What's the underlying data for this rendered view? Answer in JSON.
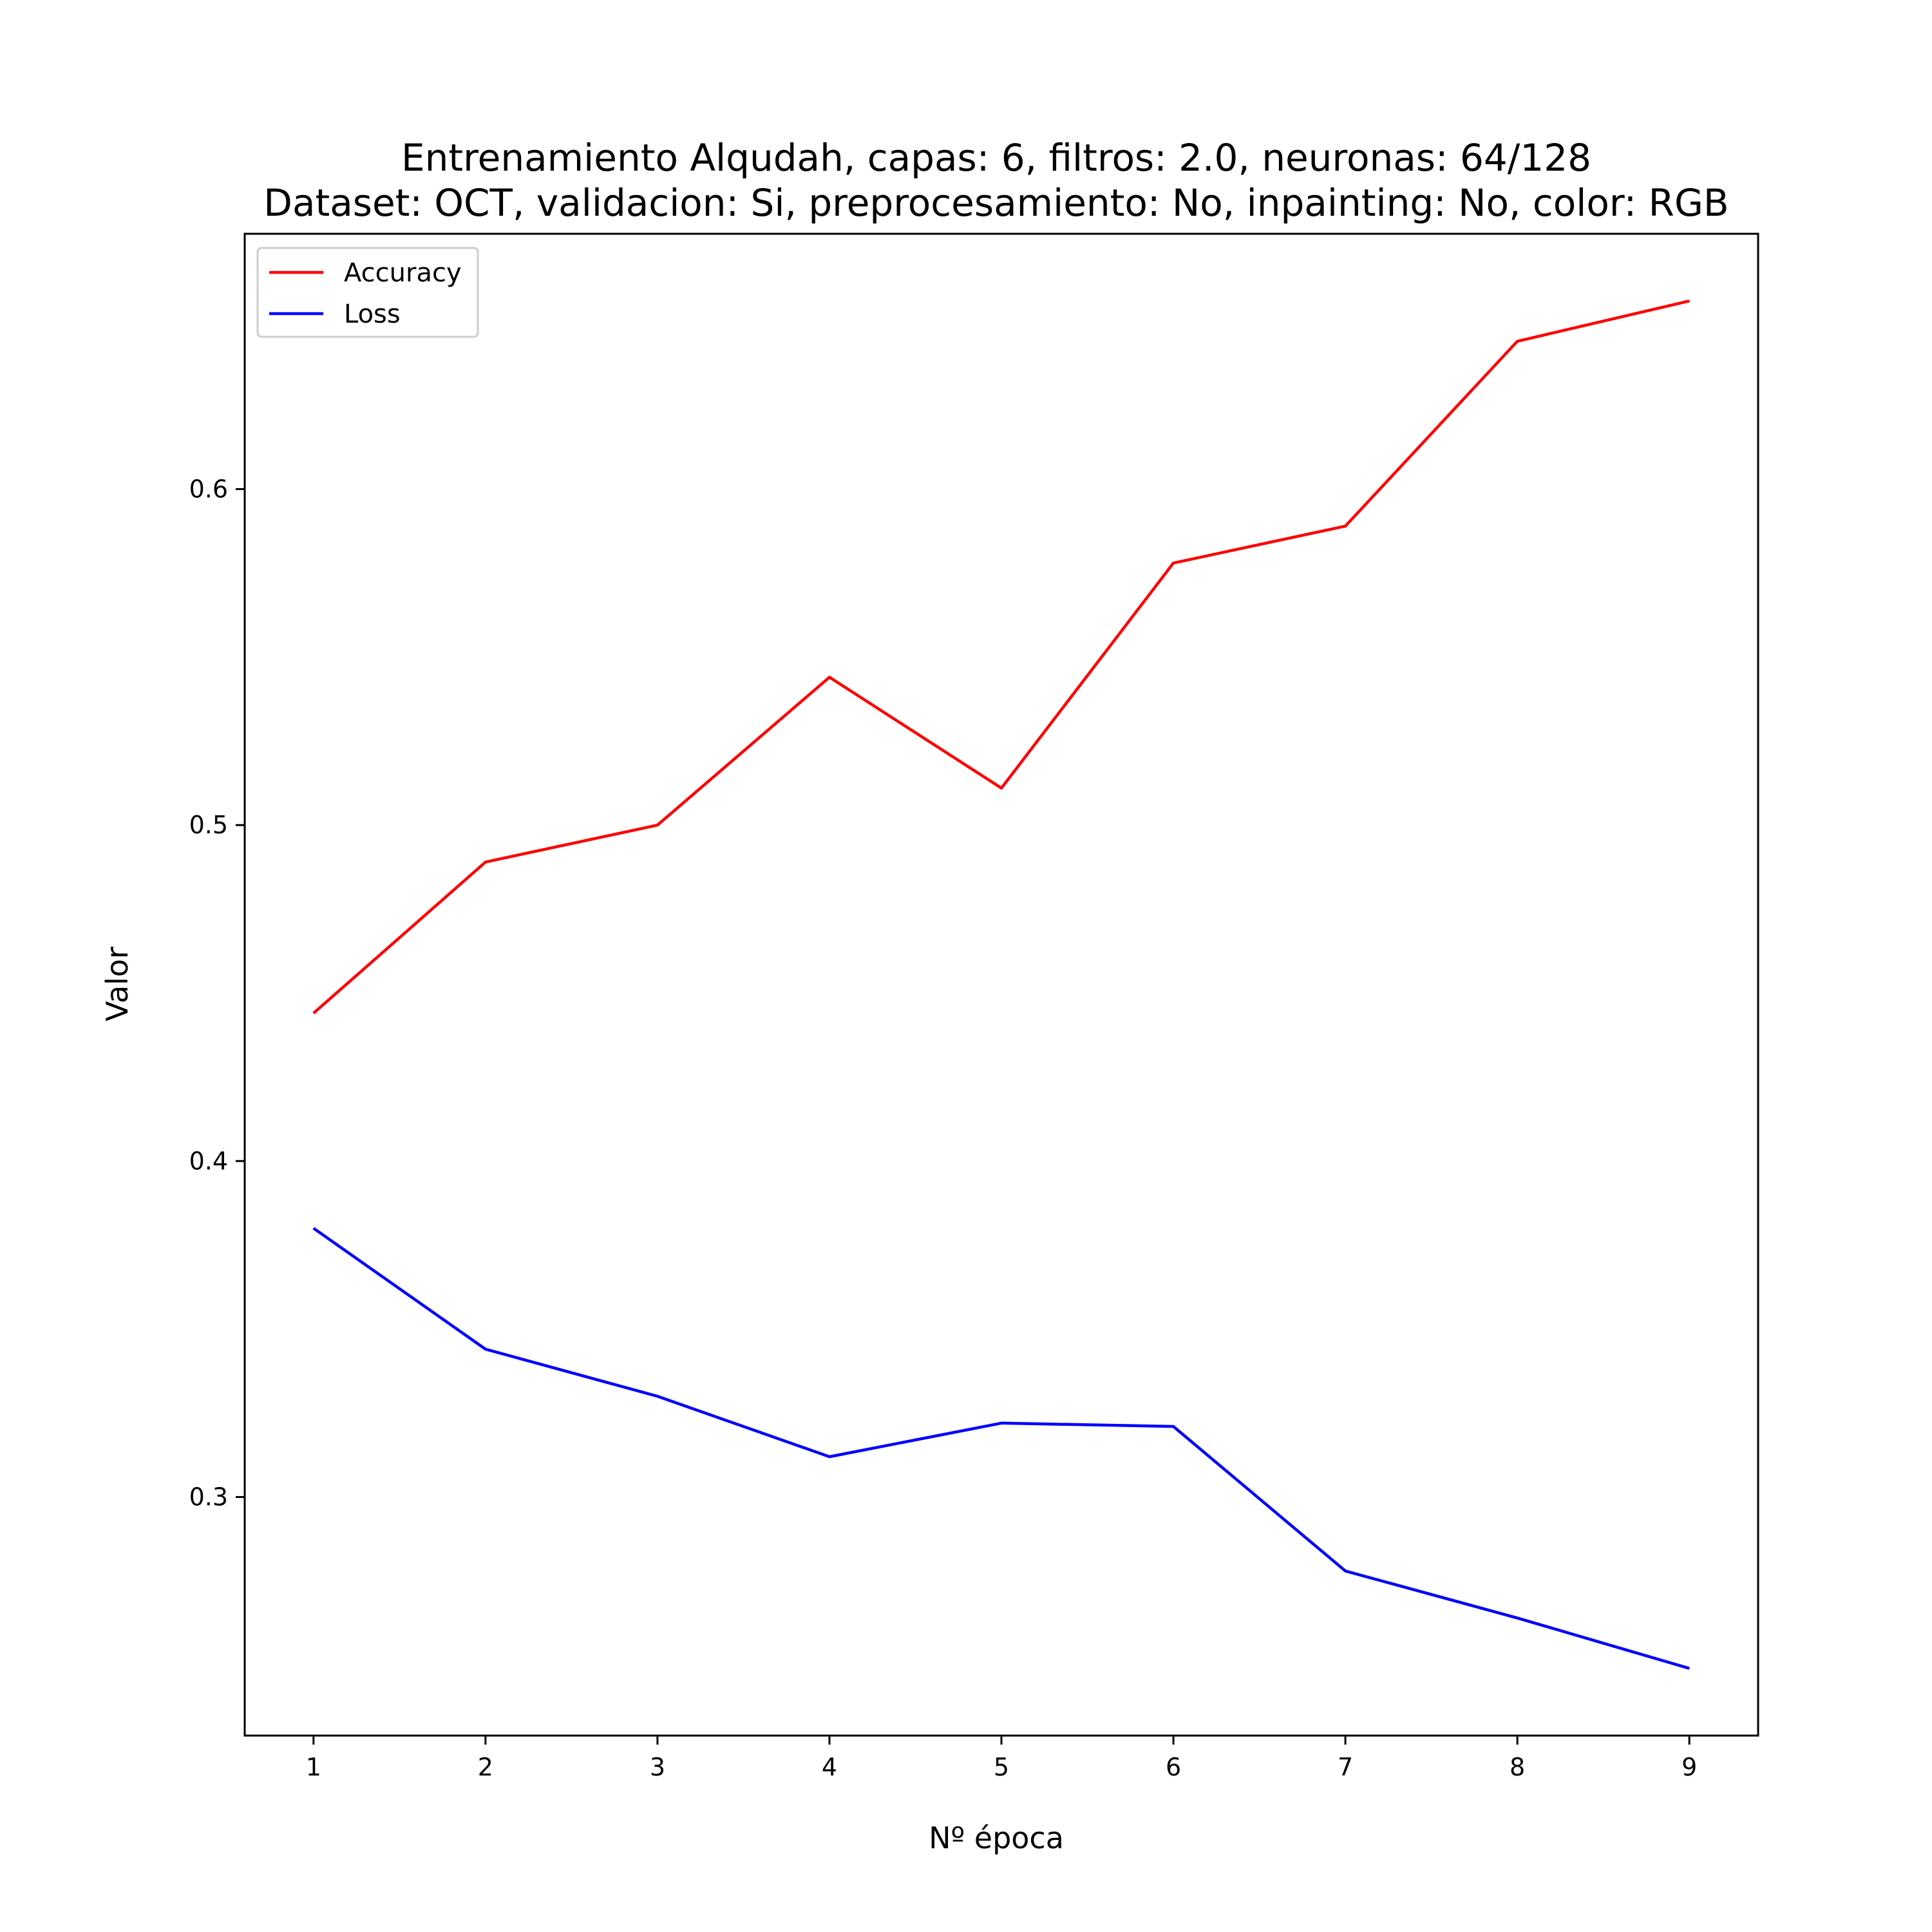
{
  "chart_data": {
    "type": "line",
    "title": "Entrenamiento Alqudah, capas: 6, filtros: 2.0, neuronas: 64/128",
    "subtitle": "Dataset: OCT, validacion: Si, preprocesamiento: No, inpainting: No, color: RGB",
    "xlabel": "Nº época",
    "ylabel": "Valor",
    "x": [
      1,
      2,
      3,
      4,
      5,
      6,
      7,
      8,
      9
    ],
    "x_ticks": [
      "1",
      "2",
      "3",
      "4",
      "5",
      "6",
      "7",
      "8",
      "9"
    ],
    "y_ticks": [
      "0.3",
      "0.4",
      "0.5",
      "0.6"
    ],
    "y_tick_values": [
      0.3,
      0.4,
      0.5,
      0.6
    ],
    "xlim": [
      0.6,
      9.4
    ],
    "ylim": [
      0.229,
      0.676
    ],
    "grid": false,
    "legend_position": "top-left",
    "series": [
      {
        "name": "Accuracy",
        "color": "#ff0000",
        "values": [
          0.444,
          0.489,
          0.5,
          0.544,
          0.511,
          0.578,
          0.589,
          0.644,
          0.656
        ]
      },
      {
        "name": "Loss",
        "color": "#0000ff",
        "values": [
          0.38,
          0.344,
          0.33,
          0.312,
          0.322,
          0.321,
          0.278,
          0.264,
          0.249
        ]
      }
    ]
  }
}
